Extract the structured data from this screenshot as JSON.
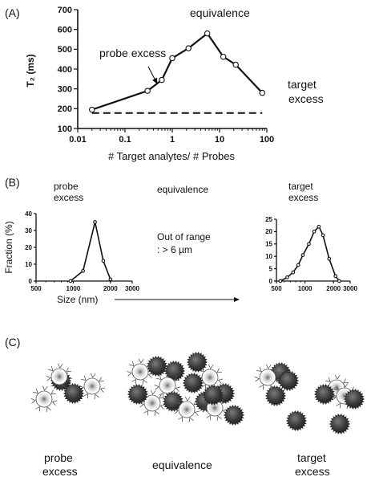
{
  "panels": {
    "a": {
      "label": "(A)",
      "annotations": {
        "probe_excess": "probe excess",
        "equivalence": "equivalence",
        "target_line1": "target",
        "target_line2": "excess"
      }
    },
    "b": {
      "label": "(B)",
      "probe_line1": "probe",
      "probe_line2": "excess",
      "equivalence": "equivalence",
      "target_line1": "target",
      "target_line2": "excess",
      "out_line1": "Out of range",
      "out_line2": ": > 6 µm",
      "ylabel": "Fraction (%)",
      "xlabel": "Size (nm)"
    },
    "c": {
      "label": "(C)",
      "probe_line1": "probe",
      "probe_line2": "excess",
      "equivalence": "equivalence",
      "target_line1": "target",
      "target_line2": "excess"
    }
  },
  "chart_data": [
    {
      "type": "line",
      "panel": "A",
      "ylabel": "T₂ (ms)",
      "xlabel": "# Target analytes/ # Probes",
      "xscale": "log",
      "xlim": [
        0.01,
        100
      ],
      "ylim": [
        100,
        700
      ],
      "xticks": [
        0.01,
        0.1,
        1,
        10,
        100
      ],
      "xtick_labels": [
        "0.01",
        "0.1",
        "1",
        "10",
        "100"
      ],
      "yticks": [
        100,
        200,
        300,
        400,
        500,
        600,
        700
      ],
      "ytick_labels": [
        "100",
        "200",
        "300",
        "400",
        "500",
        "600",
        "700"
      ],
      "series": [
        {
          "x": [
            0.02,
            0.3,
            0.6,
            1.0,
            2.2,
            5.5,
            12,
            22,
            80
          ],
          "y": [
            195,
            290,
            345,
            455,
            505,
            580,
            462,
            422,
            280
          ]
        }
      ],
      "baseline": {
        "x": [
          0.02,
          80
        ],
        "y": [
          178,
          178
        ],
        "style": "dashed"
      }
    },
    {
      "type": "line",
      "panel": "B-probe-excess",
      "xscale": "log",
      "xlim": [
        500,
        3000
      ],
      "ylim": [
        0,
        40
      ],
      "xticks": [
        500,
        1000,
        2000,
        3000
      ],
      "xtick_labels": [
        "500",
        "1000",
        "2000",
        "3000"
      ],
      "yticks": [
        0,
        10,
        20,
        30,
        40
      ],
      "ytick_labels": [
        "0",
        "10",
        "20",
        "30",
        "40"
      ],
      "series": [
        {
          "x": [
            950,
            1200,
            1500,
            1750,
            2000
          ],
          "y": [
            0,
            6,
            35,
            12,
            1
          ]
        }
      ]
    },
    {
      "type": "line",
      "panel": "B-target-excess",
      "xscale": "log",
      "xlim": [
        500,
        3000
      ],
      "ylim": [
        0,
        25
      ],
      "xticks": [
        500,
        1000,
        2000,
        3000
      ],
      "xtick_labels": [
        "500",
        "1000",
        "2000",
        "3000"
      ],
      "yticks": [
        0,
        5,
        10,
        15,
        20,
        25
      ],
      "ytick_labels": [
        "0",
        "5",
        "10",
        "15",
        "20",
        "25"
      ],
      "series": [
        {
          "x": [
            550,
            650,
            750,
            850,
            950,
            1100,
            1250,
            1400,
            1550,
            1800,
            2100,
            2300
          ],
          "y": [
            0,
            1.5,
            3.5,
            6.5,
            10.5,
            15,
            20,
            22,
            18.5,
            9,
            2,
            0
          ]
        }
      ]
    }
  ]
}
